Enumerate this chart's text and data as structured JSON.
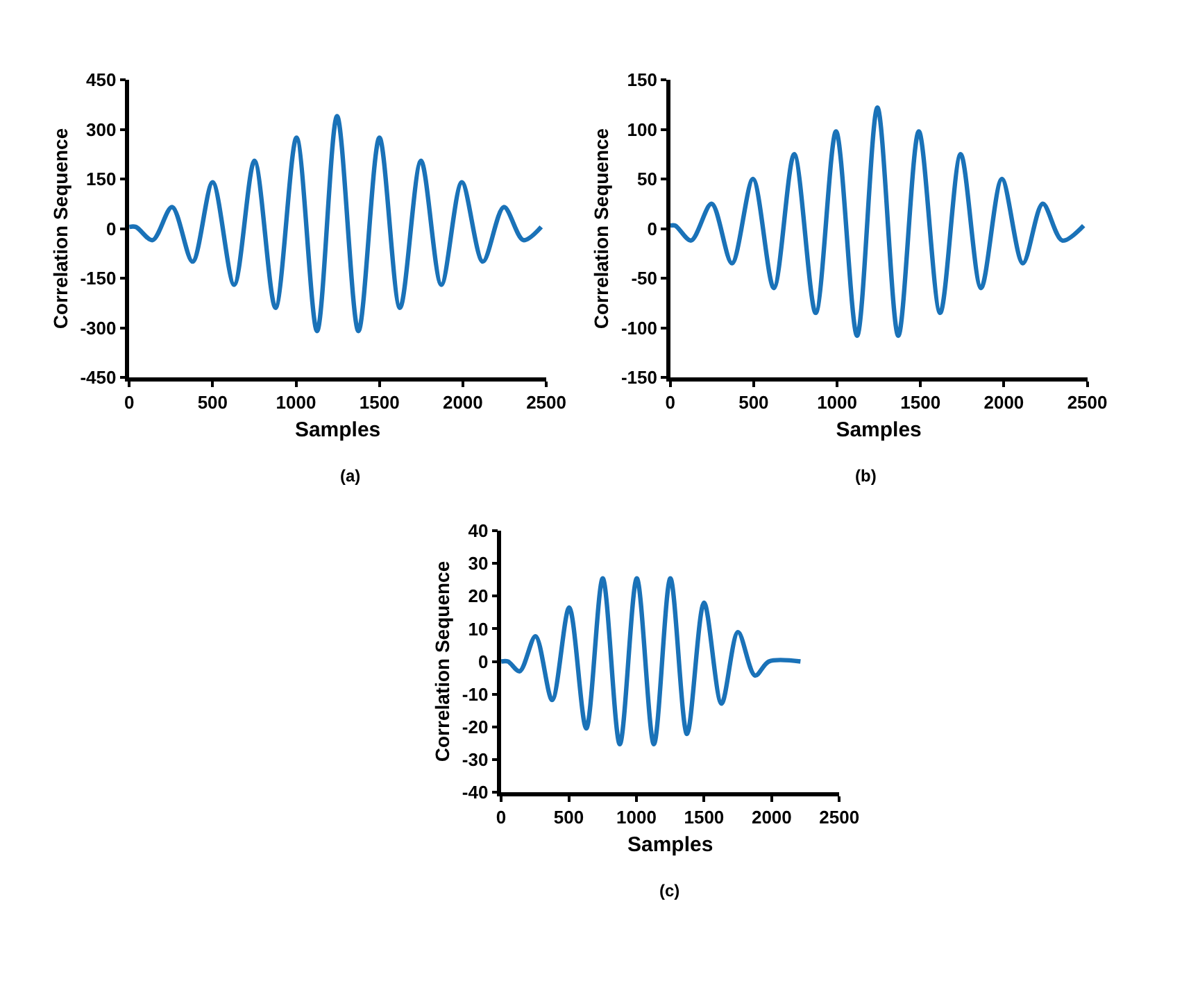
{
  "chart_data": [
    {
      "type": "line",
      "xlabel": "Samples",
      "ylabel": "Correlation Sequence",
      "annotations": [
        "(a)"
      ],
      "xlim": [
        0,
        2500
      ],
      "xticks": [
        0,
        500,
        1000,
        1500,
        2000,
        2500
      ],
      "ylim": [
        -450,
        450
      ],
      "yticks": [
        -450,
        -300,
        -150,
        0,
        150,
        300,
        450
      ],
      "marker": "none",
      "line_style": "solid",
      "series": [
        {
          "color": "#1a72b8",
          "x": [
            0,
            40,
            140,
            257,
            380,
            500,
            629,
            751,
            877,
            1003,
            1126,
            1246,
            1374,
            1500,
            1623,
            1749,
            1871,
            1994,
            2120,
            2246,
            2363,
            2470
          ],
          "values": [
            5,
            5,
            -35,
            65,
            -100,
            140,
            -170,
            205,
            -240,
            275,
            -310,
            340,
            -310,
            275,
            -240,
            205,
            -170,
            140,
            -100,
            65,
            -35,
            5
          ]
        }
      ]
    },
    {
      "type": "line",
      "xlabel": "Samples",
      "ylabel": "Correlation Sequence",
      "annotations": [
        "(b)"
      ],
      "xlim": [
        0,
        2500
      ],
      "xticks": [
        0,
        500,
        1000,
        1500,
        2000,
        2500
      ],
      "ylim": [
        -150,
        150
      ],
      "yticks": [
        -150,
        -100,
        -50,
        0,
        50,
        100,
        150
      ],
      "marker": "none",
      "line_style": "solid",
      "series": [
        {
          "color": "#1a72b8",
          "x": [
            0,
            30,
            125,
            248,
            370,
            496,
            621,
            743,
            872,
            994,
            1120,
            1242,
            1367,
            1490,
            1618,
            1741,
            1863,
            1988,
            2114,
            2233,
            2350,
            2478
          ],
          "values": [
            3,
            3,
            -12,
            25,
            -35,
            50,
            -60,
            75,
            -85,
            98,
            -108,
            122,
            -108,
            98,
            -85,
            75,
            -60,
            50,
            -35,
            25,
            -12,
            3
          ]
        }
      ]
    },
    {
      "type": "line",
      "xlabel": "Samples",
      "ylabel": "Correlation Sequence",
      "annotations": [
        "(c)"
      ],
      "xlim": [
        0,
        2500
      ],
      "xticks": [
        0,
        500,
        1000,
        1500,
        2000,
        2500
      ],
      "ylim": [
        -40,
        40
      ],
      "yticks": [
        -40,
        -30,
        -20,
        -10,
        0,
        10,
        20,
        30,
        40
      ],
      "marker": "none",
      "line_style": "solid",
      "series": [
        {
          "color": "#1a72b8",
          "x": [
            0,
            50,
            137,
            254,
            377,
            503,
            629,
            751,
            877,
            1003,
            1129,
            1251,
            1374,
            1500,
            1629,
            1751,
            1877,
            1980,
            2213
          ],
          "values": [
            0,
            0,
            -3,
            7.7,
            -11.8,
            16.5,
            -20.5,
            25.4,
            -25.3,
            25.4,
            -25.3,
            25.4,
            -22.2,
            18,
            -12.9,
            9,
            -4.3,
            0,
            0
          ]
        }
      ]
    }
  ]
}
